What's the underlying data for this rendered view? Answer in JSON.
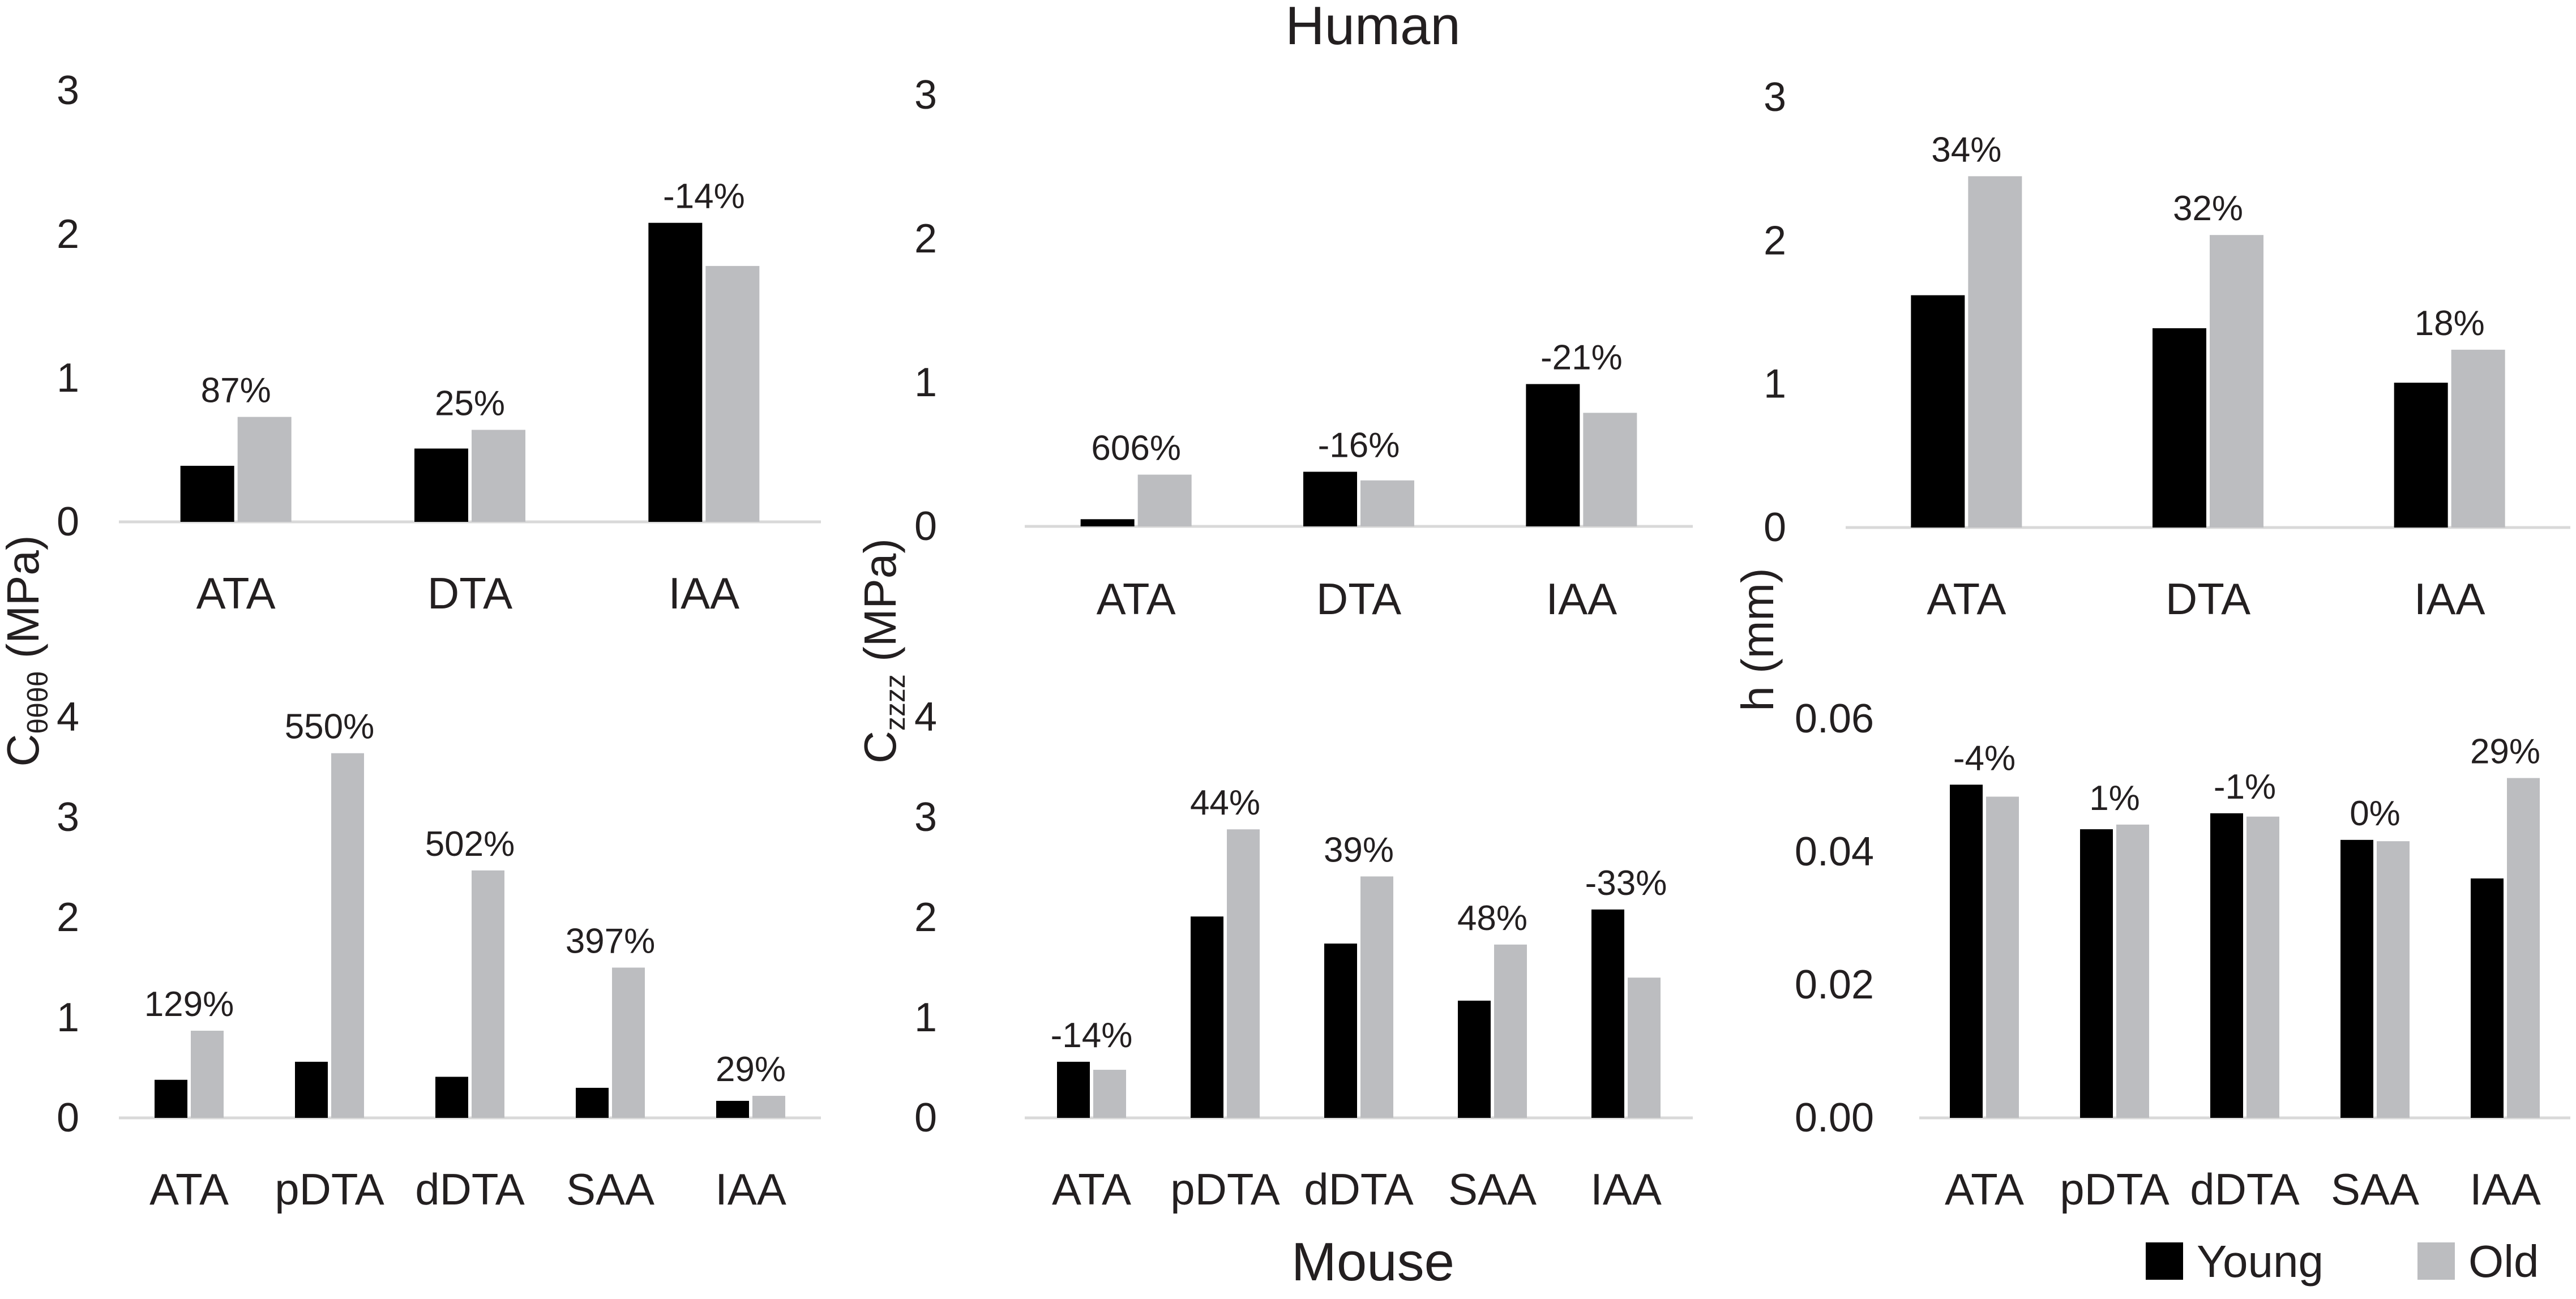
{
  "figure": {
    "top_title": "Human",
    "bottom_title": "Mouse",
    "colors": {
      "young": "#000000",
      "old": "#bcbdc0",
      "axis": "#d9d9d9",
      "text": "#231f20"
    },
    "legend": {
      "young": "Young",
      "old": "Old",
      "placement": "bottom-right"
    },
    "ylabels": {
      "c_theta": {
        "main": "C",
        "sub": "θθθθ",
        "unit": " (MPa)"
      },
      "c_z": {
        "main": "C",
        "sub": "zzzz",
        "unit": " (MPa)"
      },
      "h": {
        "text": "h (mm)"
      }
    }
  },
  "chart_data": [
    {
      "id": "human_c_theta",
      "type": "bar",
      "row": "Human",
      "col": 0,
      "categories": [
        "ATA",
        "DTA",
        "IAA"
      ],
      "series": [
        {
          "name": "Young",
          "values": [
            0.39,
            0.51,
            2.08
          ]
        },
        {
          "name": "Old",
          "values": [
            0.73,
            0.64,
            1.78
          ]
        }
      ],
      "labels": [
        "87%",
        "25%",
        "-14%"
      ],
      "ylim": [
        0,
        3
      ],
      "yticks": [
        "0",
        "1",
        "2",
        "3"
      ],
      "ytick_values": [
        0,
        1,
        2,
        3
      ],
      "ylabel": "Cθθθθ (MPa)"
    },
    {
      "id": "human_c_z",
      "type": "bar",
      "row": "Human",
      "col": 1,
      "categories": [
        "ATA",
        "DTA",
        "IAA"
      ],
      "series": [
        {
          "name": "Young",
          "values": [
            0.05,
            0.38,
            0.99
          ]
        },
        {
          "name": "Old",
          "values": [
            0.36,
            0.32,
            0.79
          ]
        }
      ],
      "labels": [
        "606%",
        "-16%",
        "-21%"
      ],
      "ylim": [
        0,
        3
      ],
      "yticks": [
        "0",
        "1",
        "2",
        "3"
      ],
      "ytick_values": [
        0,
        1,
        2,
        3
      ],
      "ylabel": "Czzzz (MPa)"
    },
    {
      "id": "human_h",
      "type": "bar",
      "row": "Human",
      "col": 2,
      "categories": [
        "ATA",
        "DTA",
        "IAA"
      ],
      "series": [
        {
          "name": "Young",
          "values": [
            1.62,
            1.39,
            1.01
          ]
        },
        {
          "name": "Old",
          "values": [
            2.45,
            2.04,
            1.24
          ]
        }
      ],
      "labels": [
        "34%",
        "32%",
        "18%"
      ],
      "ylim": [
        0,
        3
      ],
      "yticks": [
        "0",
        "1",
        "2",
        "3"
      ],
      "ytick_values": [
        0,
        1,
        2,
        3
      ],
      "ylabel": "h (mm)"
    },
    {
      "id": "mouse_c_theta",
      "type": "bar",
      "row": "Mouse",
      "col": 0,
      "categories": [
        "ATA",
        "pDTA",
        "dDTA",
        "SAA",
        "IAA"
      ],
      "series": [
        {
          "name": "Young",
          "values": [
            0.38,
            0.56,
            0.41,
            0.3,
            0.17
          ]
        },
        {
          "name": "Old",
          "values": [
            0.87,
            3.64,
            2.47,
            1.5,
            0.22
          ]
        }
      ],
      "labels": [
        "129%",
        "550%",
        "502%",
        "397%",
        "29%"
      ],
      "ylim": [
        0,
        4
      ],
      "yticks": [
        "0",
        "1",
        "2",
        "3",
        "4"
      ],
      "ytick_values": [
        0,
        1,
        2,
        3,
        4
      ],
      "ylabel": "Cθθθθ (MPa)"
    },
    {
      "id": "mouse_c_z",
      "type": "bar",
      "row": "Mouse",
      "col": 1,
      "categories": [
        "ATA",
        "pDTA",
        "dDTA",
        "SAA",
        "IAA"
      ],
      "series": [
        {
          "name": "Young",
          "values": [
            0.56,
            2.01,
            1.74,
            1.17,
            2.08
          ]
        },
        {
          "name": "Old",
          "values": [
            0.48,
            2.88,
            2.41,
            1.73,
            1.4
          ]
        }
      ],
      "labels": [
        "-14%",
        "44%",
        "39%",
        "48%",
        "-33%"
      ],
      "ylim": [
        0,
        4
      ],
      "yticks": [
        "0",
        "1",
        "2",
        "3",
        "4"
      ],
      "ytick_values": [
        0,
        1,
        2,
        3,
        4
      ],
      "ylabel": "Czzzz (MPa)"
    },
    {
      "id": "mouse_h",
      "type": "bar",
      "row": "Mouse",
      "col": 2,
      "categories": [
        "ATA",
        "pDTA",
        "dDTA",
        "SAA",
        "IAA"
      ],
      "series": [
        {
          "name": "Young",
          "values": [
            0.0501,
            0.0434,
            0.0458,
            0.0418,
            0.036
          ]
        },
        {
          "name": "Old",
          "values": [
            0.0483,
            0.0441,
            0.0453,
            0.0416,
            0.0511
          ]
        }
      ],
      "labels": [
        "-4%",
        "1%",
        "-1%",
        "0%",
        "29%"
      ],
      "ylim": [
        0,
        0.06
      ],
      "yticks": [
        "0.00",
        "0.02",
        "0.04",
        "0.06"
      ],
      "ytick_values": [
        0,
        0.02,
        0.04,
        0.06
      ],
      "ylabel": "h (mm)"
    }
  ]
}
